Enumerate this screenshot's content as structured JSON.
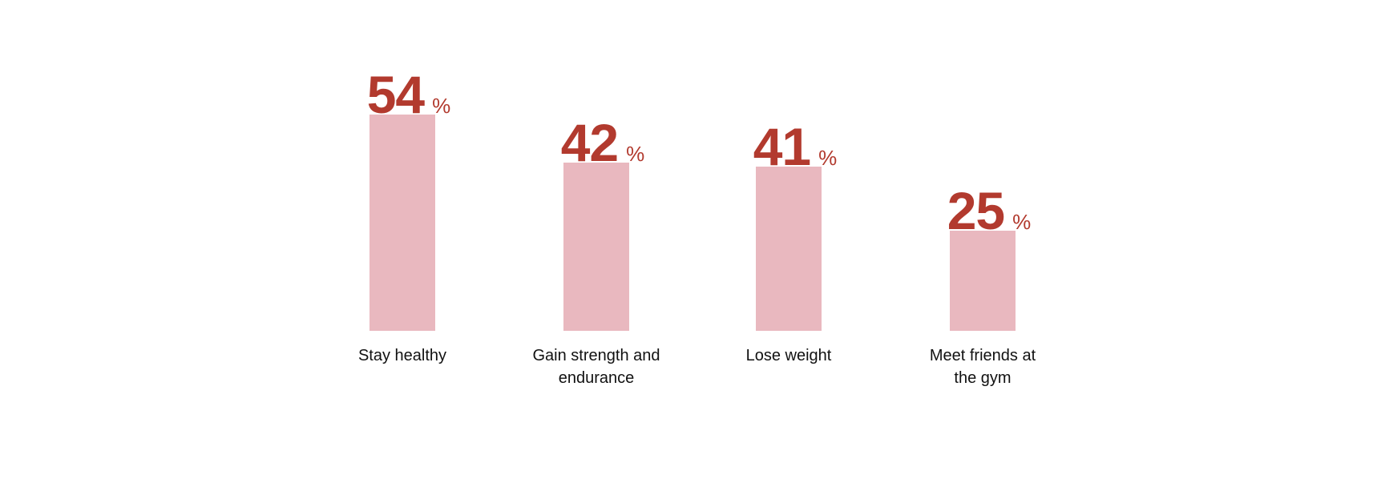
{
  "chart_data": {
    "type": "bar",
    "categories": [
      "Stay healthy",
      "Gain strength and endurance",
      "Lose weight",
      "Meet friends at the gym"
    ],
    "values": [
      54,
      42,
      41,
      25
    ],
    "unit": "%",
    "title": "",
    "xlabel": "",
    "ylabel": "",
    "ylim": [
      0,
      54
    ],
    "grid": false,
    "legend": "none"
  },
  "labels": [
    {
      "lines": [
        "Stay healthy"
      ]
    },
    {
      "lines": [
        "Gain strength and",
        "endurance"
      ]
    },
    {
      "lines": [
        "Lose weight"
      ]
    },
    {
      "lines": [
        "Meet friends at",
        "the gym"
      ]
    }
  ],
  "colors": {
    "bar": "#e9b8bf",
    "value_text": "#b23a2e",
    "label_text": "#111111"
  }
}
